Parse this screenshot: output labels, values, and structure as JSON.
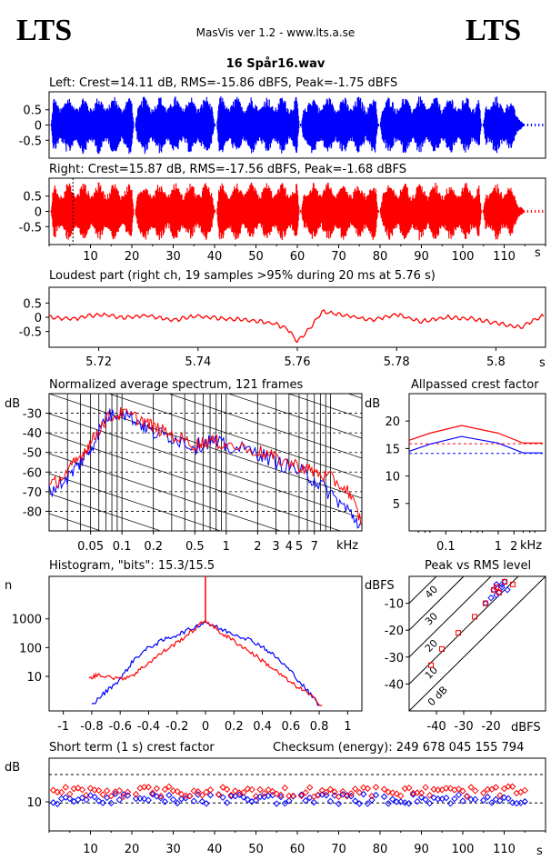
{
  "header": {
    "logo_left": "LTS",
    "logo_right": "LTS",
    "app_title": "MasVis ver 1.2 - www.lts.a.se",
    "file_title": "16 Spår16.wav"
  },
  "colors": {
    "left": "#0000ff",
    "right": "#ff0000",
    "axis": "#000000"
  },
  "waveform": {
    "left_label": "Left: Crest=14.11 dB, RMS=-15.86 dBFS, Peak=-1.75 dBFS",
    "right_label": "Right: Crest=15.87 dB, RMS=-17.56 dBFS, Peak=-1.68 dBFS",
    "y_ticks": [
      "0.5",
      "0",
      "-0.5"
    ],
    "x_ticks": [
      "10",
      "20",
      "30",
      "40",
      "50",
      "60",
      "70",
      "80",
      "90",
      "100",
      "110"
    ],
    "x_unit": "s"
  },
  "loudest": {
    "label": "Loudest part (right ch, 19 samples >95% during 20 ms at 5.76 s)",
    "y_ticks": [
      "0.5",
      "0",
      "-0.5"
    ],
    "x_ticks": [
      "5.72",
      "5.74",
      "5.76",
      "5.78",
      "5.8"
    ],
    "x_unit": "s"
  },
  "spectrum": {
    "label": "Normalized average spectrum, 121 frames",
    "y_unit": "dB",
    "y_ticks": [
      "-30",
      "-40",
      "-50",
      "-60",
      "-70",
      "-80"
    ],
    "x_ticks": [
      "0.05",
      "0.1",
      "0.2",
      "0.5",
      "1",
      "2",
      "3",
      "4",
      "5",
      "7"
    ],
    "x_unit": "kHz"
  },
  "allpass": {
    "label": "Allpassed crest factor",
    "y_unit": "dB",
    "y_ticks": [
      "20",
      "15",
      "10",
      "5"
    ],
    "x_ticks": [
      "0.1",
      "1",
      "2"
    ],
    "x_unit": "kHz"
  },
  "histogram": {
    "label": "Histogram, \"bits\": 15.3/15.5",
    "y_unit": "n",
    "y_ticks": [
      "1000",
      "100",
      "10"
    ],
    "x_ticks": [
      "-1",
      "-0.8",
      "-0.6",
      "-0.4",
      "-0.2",
      "0",
      "0.2",
      "0.4",
      "0.6",
      "0.8",
      "1"
    ]
  },
  "peakrms": {
    "label": "Peak vs RMS level",
    "y_unit": "dBFS",
    "y_ticks": [
      "-10",
      "-20",
      "-30",
      "-40"
    ],
    "x_ticks": [
      "-40",
      "-30",
      "-20"
    ],
    "x_unit": "dBFS",
    "diag_labels": [
      "40",
      "30",
      "20",
      "10",
      "0 dB"
    ]
  },
  "shortterm": {
    "label": "Short term (1 s) crest factor",
    "checksum": "Checksum (energy):   249 678 045 155 794",
    "y_unit": "dB",
    "y_ticks": [
      "10"
    ],
    "x_ticks": [
      "10",
      "20",
      "30",
      "40",
      "50",
      "60",
      "70",
      "80",
      "90",
      "100",
      "110"
    ],
    "x_unit": "s"
  },
  "chart_data": [
    {
      "type": "line",
      "title": "Left: Crest=14.11 dB, RMS=-15.86 dBFS, Peak=-1.75 dBFS",
      "xlim": [
        0,
        120
      ],
      "ylim": [
        -1,
        1
      ],
      "segments": [
        [
          0.5,
          20.5
        ],
        [
          20.8,
          40.0
        ],
        [
          40.5,
          60.5
        ],
        [
          61.0,
          79.5
        ],
        [
          80.0,
          104.5
        ],
        [
          105.0,
          115.0
        ]
      ]
    },
    {
      "type": "line",
      "title": "Right: Crest=15.87 dB, RMS=-17.56 dBFS, Peak=-1.68 dBFS",
      "xlim": [
        0,
        120
      ],
      "ylim": [
        -1,
        1
      ],
      "segments": [
        [
          0.5,
          20.5
        ],
        [
          20.8,
          40.0
        ],
        [
          40.5,
          60.5
        ],
        [
          61.0,
          79.5
        ],
        [
          80.0,
          104.5
        ],
        [
          105.0,
          115.0
        ]
      ],
      "marker_x": 5.76
    },
    {
      "type": "line",
      "title": "Loudest part (right ch, 19 samples >95% during 20 ms at 5.76 s)",
      "xlim": [
        5.71,
        5.81
      ],
      "ylim": [
        -1,
        1
      ],
      "x": [
        5.71,
        5.715,
        5.72,
        5.725,
        5.73,
        5.735,
        5.74,
        5.745,
        5.75,
        5.755,
        5.758,
        5.76,
        5.762,
        5.765,
        5.77,
        5.775,
        5.78,
        5.785,
        5.79,
        5.795,
        5.8,
        5.805,
        5.81
      ],
      "y": [
        0.0,
        -0.05,
        0.1,
        0.0,
        0.05,
        -0.1,
        0.05,
        -0.05,
        -0.1,
        -0.2,
        -0.4,
        -0.85,
        -0.5,
        0.2,
        0.05,
        -0.1,
        0.1,
        -0.15,
        0.0,
        -0.05,
        -0.2,
        -0.35,
        0.1
      ]
    },
    {
      "type": "line",
      "title": "Normalized average spectrum, 121 frames",
      "x_scale": "log",
      "xlim_khz": [
        0.02,
        20
      ],
      "ylim_db": [
        -90,
        -20
      ],
      "series": [
        {
          "x": [
            0.02,
            0.03,
            0.04,
            0.05,
            0.07,
            0.1,
            0.15,
            0.2,
            0.3,
            0.5,
            0.7,
            1,
            2,
            3,
            5,
            7,
            10,
            15,
            20
          ],
          "y": [
            -70,
            -63,
            -55,
            -48,
            -32,
            -29,
            -35,
            -40,
            -42,
            -47,
            -44,
            -47,
            -50,
            -55,
            -59,
            -64,
            -71,
            -80,
            -88
          ]
        },
        {
          "x": [
            0.02,
            0.03,
            0.04,
            0.05,
            0.07,
            0.1,
            0.15,
            0.2,
            0.3,
            0.5,
            0.7,
            1,
            2,
            3,
            5,
            7,
            10,
            15,
            20
          ],
          "y": [
            -68,
            -60,
            -52,
            -45,
            -33,
            -30,
            -33,
            -37,
            -41,
            -46,
            -44,
            -46,
            -49,
            -53,
            -57,
            -60,
            -63,
            -70,
            -86
          ]
        }
      ]
    },
    {
      "type": "line",
      "title": "Allpassed crest factor",
      "x_scale": "log",
      "ylim": [
        0,
        25
      ],
      "series": [
        {
          "x": [
            0.02,
            0.05,
            0.2,
            1,
            3,
            7
          ],
          "y": [
            14.5,
            15.8,
            17.2,
            16.0,
            14.2,
            14.2
          ]
        },
        {
          "x": [
            0.02,
            0.05,
            0.2,
            1,
            3,
            7
          ],
          "y": [
            16.5,
            17.8,
            19.2,
            17.8,
            16.0,
            16.0
          ]
        }
      ],
      "reference_lines": [
        14.11,
        15.87
      ]
    },
    {
      "type": "line",
      "title": "Histogram, \"bits\": 15.3/15.5",
      "y_scale": "log",
      "xlim": [
        -1.1,
        1.1
      ],
      "series": [
        {
          "x": [
            -0.8,
            -0.7,
            -0.6,
            -0.5,
            -0.4,
            -0.3,
            -0.2,
            -0.1,
            0,
            0.1,
            0.2,
            0.3,
            0.4,
            0.5,
            0.6,
            0.7,
            0.8
          ],
          "y": [
            1,
            3,
            8,
            40,
            100,
            180,
            280,
            450,
            800,
            450,
            300,
            200,
            110,
            45,
            15,
            4,
            1
          ]
        },
        {
          "x": [
            -0.82,
            -0.75,
            -0.6,
            -0.5,
            -0.4,
            -0.3,
            -0.2,
            -0.1,
            0,
            0.1,
            0.2,
            0.3,
            0.4,
            0.5,
            0.6,
            0.7,
            0.82
          ],
          "y": [
            8,
            12,
            8,
            12,
            30,
            70,
            150,
            350,
            900,
            350,
            170,
            80,
            35,
            15,
            6,
            3,
            1
          ]
        }
      ]
    },
    {
      "type": "scatter",
      "title": "Peak vs RMS level",
      "xlim": [
        -50,
        0
      ],
      "ylim": [
        -50,
        0
      ],
      "series": [
        {
          "x": [
            -18,
            -16,
            -15,
            -17,
            -20,
            -22,
            -19,
            -16,
            -14,
            -18
          ],
          "y": [
            -3,
            -4,
            -2,
            -6,
            -8,
            -10,
            -5,
            -3,
            -5,
            -7
          ]
        },
        {
          "x": [
            -42,
            -38,
            -32,
            -26,
            -22,
            -18,
            -15,
            -12,
            -19,
            -17
          ],
          "y": [
            -33,
            -27,
            -21,
            -15,
            -10,
            -4,
            -2,
            -3,
            -5,
            -6
          ]
        }
      ]
    },
    {
      "type": "scatter",
      "title": "Short term (1 s) crest factor",
      "xlim": [
        0,
        120
      ],
      "ylim": [
        0,
        25
      ]
    }
  ]
}
